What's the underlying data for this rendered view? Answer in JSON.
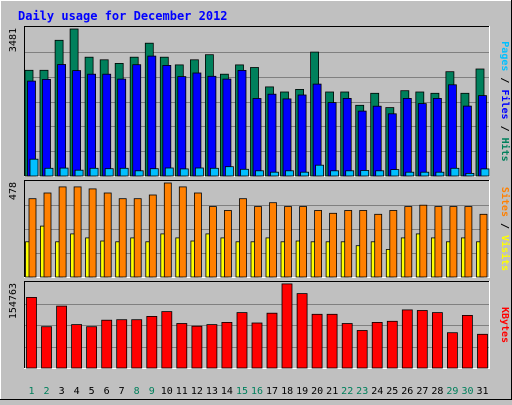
{
  "colors": {
    "background": "#c0c0c0",
    "title": "#0000ff",
    "hits": "#00805c",
    "files": "#0000ff",
    "pages": "#00c0ff",
    "sites": "#ff8000",
    "visits": "#ffff00",
    "kbytes": "#ff0000",
    "day_normal": "#000000",
    "day_weekend": "#00805c"
  },
  "chart_data": {
    "type": "bar",
    "title": "Daily usage for December 2012",
    "categories": [
      "1",
      "2",
      "3",
      "4",
      "5",
      "6",
      "7",
      "8",
      "9",
      "10",
      "11",
      "12",
      "13",
      "14",
      "15",
      "16",
      "17",
      "18",
      "19",
      "20",
      "21",
      "22",
      "23",
      "24",
      "25",
      "26",
      "27",
      "28",
      "29",
      "30",
      "31"
    ],
    "weekend_days": [
      "1",
      "2",
      "8",
      "9",
      "15",
      "16",
      "22",
      "23",
      "29",
      "30"
    ],
    "panels": [
      {
        "ymax_label": "3481",
        "ymax": 3481,
        "legend": [
          {
            "text": "Pages",
            "color_key": "pages"
          },
          {
            "text": " / ",
            "color_key": "day_normal"
          },
          {
            "text": "Files",
            "color_key": "files"
          },
          {
            "text": " / ",
            "color_key": "day_normal"
          },
          {
            "text": "Hits",
            "color_key": "hits"
          }
        ],
        "series": [
          {
            "name": "Hits",
            "color_key": "hits",
            "values": [
              2502,
              2502,
              3214,
              3481,
              2813,
              2752,
              2667,
              2813,
              3145,
              2813,
              2630,
              2752,
              2873,
              2411,
              2630,
              2569,
              2111,
              1989,
              2050,
              2935,
              1989,
              1989,
              1675,
              1959,
              1620,
              2019,
              1989,
              1958,
              2471,
              1958,
              2533
            ]
          },
          {
            "name": "Files",
            "color_key": "files",
            "values": [
              2247,
              2288,
              2640,
              2497,
              2410,
              2410,
              2295,
              2635,
              2840,
              2618,
              2354,
              2440,
              2362,
              2294,
              2501,
              1835,
              1938,
              1826,
              1917,
              2176,
              1737,
              1838,
              1536,
              1652,
              1472,
              1837,
              1714,
              1838,
              2160,
              1656,
              1905
            ]
          },
          {
            "name": "Pages",
            "color_key": "pages",
            "values": [
              399,
              183,
              186,
              138,
              183,
              174,
              183,
              122,
              174,
              189,
              167,
              189,
              183,
              221,
              159,
              122,
              91,
              122,
              91,
              256,
              122,
              122,
              131,
              122,
              152,
              91,
              91,
              91,
              183,
              61,
              167
            ]
          }
        ]
      },
      {
        "ymax_label": "478",
        "ymax": 478,
        "legend": [
          {
            "text": "Sites",
            "color_key": "sites"
          },
          {
            "text": " / ",
            "color_key": "day_normal"
          },
          {
            "text": "Visits",
            "color_key": "visits"
          }
        ],
        "series": [
          {
            "name": "Visits",
            "color_key": "visits",
            "values": [
              179,
              259,
              179,
              219,
              199,
              183,
              179,
              199,
              179,
              219,
              199,
              183,
              219,
              199,
              179,
              179,
              199,
              179,
              183,
              179,
              179,
              179,
              159,
              179,
              140,
              199,
              219,
              199,
              179,
              199,
              179
            ]
          },
          {
            "name": "Sites",
            "color_key": "sites",
            "values": [
              398,
              427,
              458,
              458,
              448,
              427,
              398,
              398,
              417,
              478,
              458,
              427,
              358,
              338,
              398,
              358,
              378,
              358,
              358,
              338,
              324,
              338,
              338,
              319,
              338,
              358,
              365,
              358,
              358,
              358,
              319
            ]
          }
        ]
      },
      {
        "ymax_label": "154763",
        "ymax": 154763,
        "legend": [
          {
            "text": "KBytes",
            "color_key": "kbytes"
          }
        ],
        "series": [
          {
            "name": "KBytes",
            "color_key": "kbytes",
            "values": [
              130000,
              76000,
              114000,
              80000,
              76000,
              88000,
              89000,
              89000,
              95000,
              104000,
              82000,
              77000,
              80000,
              84000,
              102000,
              83000,
              101000,
              155000,
              137000,
              99000,
              99000,
              82000,
              69000,
              84000,
              86000,
              107000,
              106000,
              102000,
              65000,
              97000,
              62000
            ]
          }
        ]
      }
    ]
  }
}
